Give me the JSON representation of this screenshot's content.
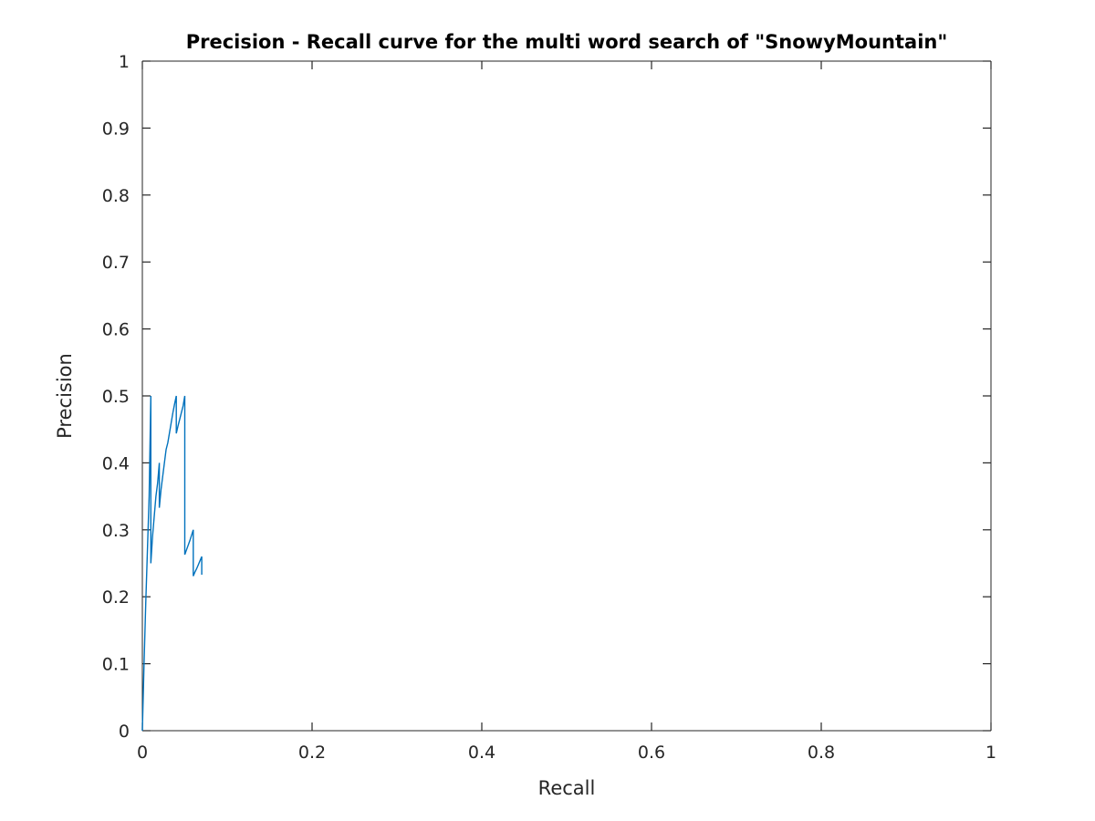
{
  "chart_data": {
    "type": "line",
    "title": "Precision - Recall curve for the multi word search of \"SnowyMountain\"",
    "xlabel": "Recall",
    "ylabel": "Precision",
    "xlim": [
      0,
      1
    ],
    "ylim": [
      0,
      1
    ],
    "xticks": [
      0,
      0.2,
      0.4,
      0.6,
      0.8,
      1
    ],
    "xtick_labels": [
      "0",
      "0.2",
      "0.4",
      "0.6",
      "0.8",
      "1"
    ],
    "yticks": [
      0,
      0.1,
      0.2,
      0.3,
      0.4,
      0.5,
      0.6,
      0.7,
      0.8,
      0.9,
      1
    ],
    "ytick_labels": [
      "0",
      "0.1",
      "0.2",
      "0.3",
      "0.4",
      "0.5",
      "0.6",
      "0.7",
      "0.8",
      "0.9",
      "1"
    ],
    "grid": false,
    "series": [
      {
        "color": "#0072bd",
        "x": [
          0,
          0.002,
          0.004,
          0.006,
          0.008,
          0.01,
          0.01,
          0.012,
          0.014,
          0.016,
          0.018,
          0.02,
          0.02,
          0.022,
          0.024,
          0.026,
          0.028,
          0.03,
          0.032,
          0.034,
          0.036,
          0.038,
          0.04,
          0.04,
          0.042,
          0.044,
          0.046,
          0.048,
          0.05,
          0.05,
          0.052,
          0.054,
          0.056,
          0.058,
          0.06,
          0.06,
          0.062,
          0.064,
          0.066,
          0.068,
          0.07,
          0.07
        ],
        "y": [
          0,
          0.1,
          0.19,
          0.27,
          0.35,
          0.5,
          0.25,
          0.29,
          0.32,
          0.35,
          0.37,
          0.4,
          0.333,
          0.36,
          0.38,
          0.4,
          0.42,
          0.43,
          0.445,
          0.46,
          0.475,
          0.488,
          0.5,
          0.444,
          0.455,
          0.465,
          0.475,
          0.485,
          0.5,
          0.263,
          0.27,
          0.277,
          0.284,
          0.292,
          0.3,
          0.231,
          0.237,
          0.242,
          0.248,
          0.254,
          0.26,
          0.233
        ]
      }
    ]
  }
}
